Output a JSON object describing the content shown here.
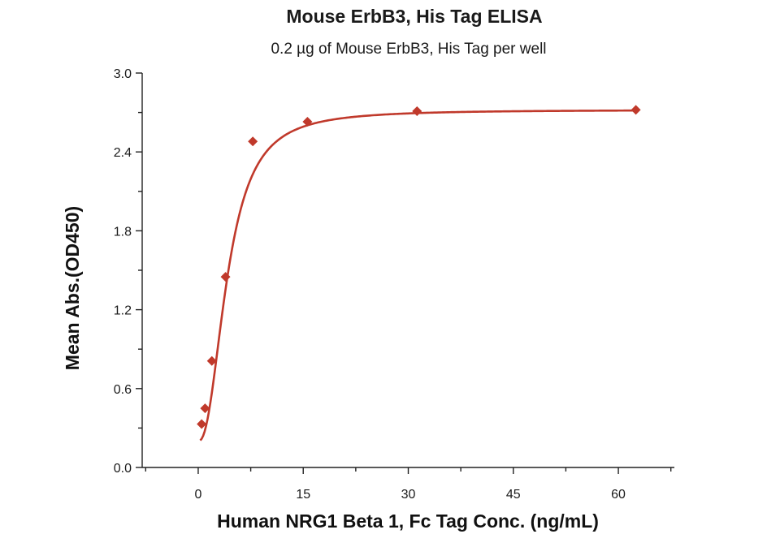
{
  "chart_data": {
    "type": "scatter",
    "title": "Mouse ErbB3, His Tag ELISA",
    "subtitle": "0.2 µg of Mouse ErbB3, His Tag per well",
    "xlabel": "Human NRG1 Beta 1, Fc Tag Conc. (ng/mL)",
    "ylabel": "Mean Abs.(OD450)",
    "xlim": [
      -8,
      68
    ],
    "ylim": [
      0,
      3.0
    ],
    "x_major_ticks": [
      0,
      15,
      30,
      45,
      60
    ],
    "x_tick_labels": [
      "0",
      "15",
      "30",
      "45",
      "60"
    ],
    "x_minor_step": 7.5,
    "y_major_ticks": [
      0.0,
      0.6,
      1.2,
      1.8,
      2.4,
      3.0
    ],
    "y_tick_labels": [
      "0.0",
      "0.6",
      "1.2",
      "1.8",
      "2.4",
      "3.0"
    ],
    "y_minor_step": 0.3,
    "grid": false,
    "legend": "none",
    "series": [
      {
        "x": [
          0.49,
          0.98,
          1.95,
          3.9,
          7.8,
          15.6,
          31.25,
          62.5
        ],
        "y": [
          0.33,
          0.45,
          0.81,
          1.45,
          2.48,
          2.63,
          2.71,
          2.72
        ],
        "marker": "diamond",
        "color": "#C0392B",
        "fit_curve": {
          "model": "4PL",
          "bottom": 0.2,
          "top": 2.72,
          "ec50": 4.2,
          "hill": 2.3,
          "x_range": [
            0.3,
            62.5
          ],
          "color": "#C0392B"
        }
      }
    ]
  }
}
